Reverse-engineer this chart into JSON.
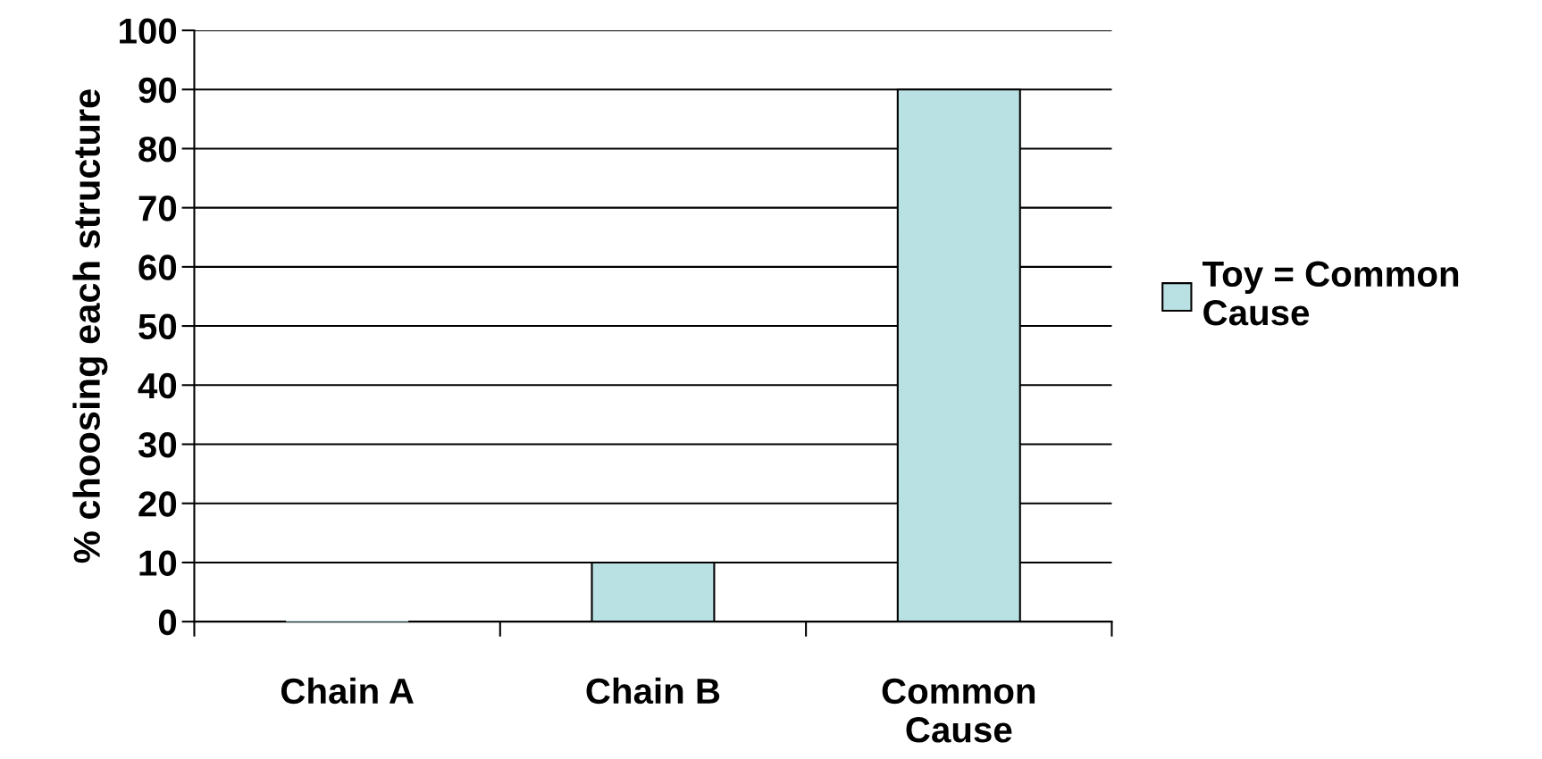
{
  "chart_data": {
    "type": "bar",
    "ylabel": "% choosing each structure",
    "categories": [
      "Chain A",
      "Chain B",
      "Common Cause"
    ],
    "series": [
      {
        "name": "Toy = Common Cause",
        "color": "#b9e0e3",
        "values": [
          0,
          10,
          90
        ]
      }
    ],
    "ylim": [
      0,
      100
    ],
    "yticks": [
      0,
      10,
      20,
      30,
      40,
      50,
      60,
      70,
      80,
      90,
      100
    ],
    "grid": "y",
    "legend": "right"
  }
}
